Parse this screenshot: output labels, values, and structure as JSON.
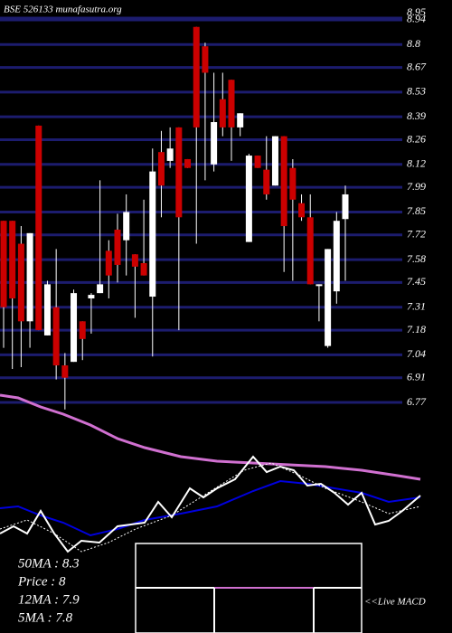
{
  "chart_data": {
    "type": "candlestick",
    "title": "BSE 526133 munafasutra.org",
    "up_color": "#ffffff",
    "down_color": "#cc0000",
    "grid_color": "#1c1c6e",
    "ylim": [
      6.77,
      8.95
    ],
    "yticks": [
      8.95,
      8.94,
      8.8,
      8.67,
      8.53,
      8.39,
      8.26,
      8.12,
      7.99,
      7.85,
      7.72,
      7.58,
      7.45,
      7.31,
      7.18,
      7.04,
      6.91,
      6.77
    ],
    "open": [
      7.8,
      7.8,
      7.67,
      7.23,
      8.34,
      7.15,
      7.31,
      6.98,
      7.0,
      7.23,
      7.36,
      7.39,
      7.63,
      7.75,
      7.69,
      7.61,
      7.56,
      7.37,
      8.19,
      8.14,
      8.33,
      8.15,
      8.9,
      8.79,
      8.12,
      8.49,
      8.6,
      8.33,
      7.68,
      8.17,
      8.09,
      8.0,
      8.28,
      8.1,
      7.9,
      7.82,
      7.43,
      7.09,
      7.4,
      7.81
    ],
    "high": [
      7.8,
      7.8,
      7.77,
      7.73,
      8.34,
      7.46,
      7.64,
      7.05,
      7.41,
      7.23,
      7.39,
      8.03,
      7.69,
      7.84,
      7.95,
      7.61,
      7.92,
      8.21,
      8.31,
      8.33,
      8.33,
      8.15,
      8.9,
      8.81,
      8.64,
      8.64,
      8.6,
      8.41,
      8.18,
      8.17,
      8.28,
      8.28,
      8.28,
      8.15,
      7.95,
      7.95,
      7.44,
      7.64,
      7.85,
      8.0
    ],
    "low": [
      7.08,
      6.96,
      6.97,
      7.08,
      7.18,
      7.15,
      6.9,
      6.73,
      7.0,
      7.01,
      7.16,
      7.39,
      7.36,
      7.45,
      7.49,
      7.25,
      7.49,
      7.03,
      7.82,
      8.1,
      7.18,
      8.1,
      7.67,
      8.03,
      8.08,
      8.28,
      8.14,
      8.28,
      7.68,
      8.1,
      7.92,
      8.0,
      7.51,
      7.46,
      7.8,
      7.44,
      7.23,
      7.08,
      7.33,
      7.46
    ],
    "close": [
      7.31,
      7.36,
      7.23,
      7.73,
      7.18,
      7.44,
      6.98,
      6.91,
      7.39,
      7.13,
      7.38,
      7.44,
      7.49,
      7.55,
      7.85,
      7.54,
      7.49,
      8.08,
      8.0,
      8.21,
      7.82,
      8.1,
      8.33,
      8.64,
      8.36,
      8.33,
      8.33,
      8.41,
      8.17,
      8.1,
      7.95,
      8.28,
      7.77,
      7.92,
      7.82,
      7.44,
      7.44,
      7.64,
      7.8,
      7.95
    ],
    "stats": [
      "50MA : 8.3",
      "Price  : 8",
      "12MA : 7.9",
      "5MA : 7.8"
    ],
    "macd_label": "<<Live MACD"
  }
}
